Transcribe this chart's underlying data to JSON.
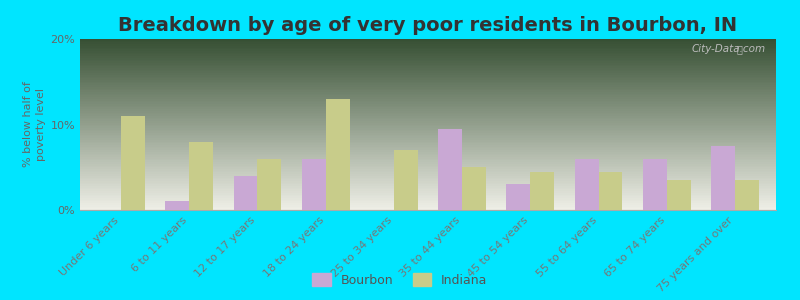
{
  "title": "Breakdown by age of very poor residents in Bourbon, IN",
  "ylabel": "% below half of\npoverty level",
  "categories": [
    "Under 6 years",
    "6 to 11 years",
    "12 to 17 years",
    "18 to 24 years",
    "25 to 34 years",
    "35 to 44 years",
    "45 to 54 years",
    "55 to 64 years",
    "65 to 74 years",
    "75 years and over"
  ],
  "bourbon_values": [
    0.0,
    1.0,
    4.0,
    6.0,
    0.0,
    9.5,
    3.0,
    6.0,
    6.0,
    7.5
  ],
  "indiana_values": [
    11.0,
    8.0,
    6.0,
    13.0,
    7.0,
    5.0,
    4.5,
    4.5,
    3.5,
    3.5
  ],
  "bourbon_color": "#c9a8d4",
  "indiana_color": "#c8cc8a",
  "background_outer": "#00e5ff",
  "ylim": [
    0,
    20
  ],
  "yticks": [
    0,
    10,
    20
  ],
  "ytick_labels": [
    "0%",
    "10%",
    "20%"
  ],
  "title_fontsize": 14,
  "axis_label_fontsize": 8,
  "tick_label_fontsize": 8,
  "bar_width": 0.35,
  "legend_labels": [
    "Bourbon",
    "Indiana"
  ],
  "watermark": "City-Data.com",
  "plot_bg_top": "#d8e8d0",
  "plot_bg_bottom": "#f0f0e8"
}
